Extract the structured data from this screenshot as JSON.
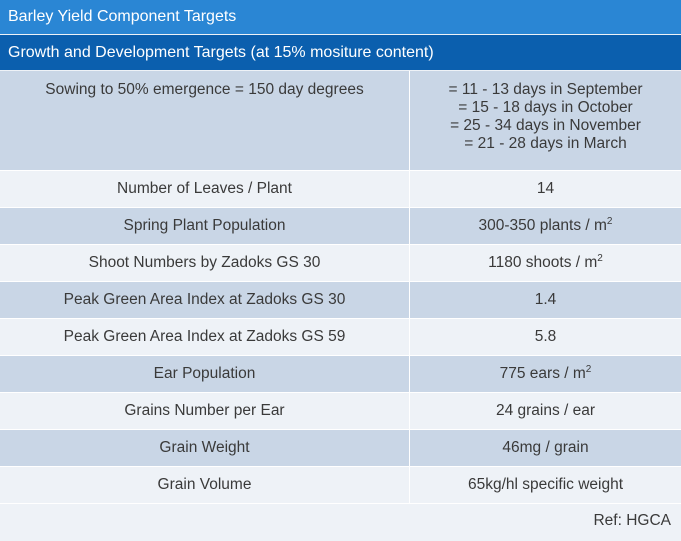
{
  "header": {
    "title": "Barley Yield Component Targets",
    "subtitle": "Growth and Development Targets (at 15% mositure content)"
  },
  "table": {
    "rows": [
      {
        "label": "Sowing to 50% emergence = 150 day degrees",
        "value_lines": [
          "= 11 - 13 days in September",
          "= 15 - 18 days in October",
          "= 25 - 34 days in November",
          "= 21 - 28 days in March"
        ]
      },
      {
        "label": "Number of Leaves / Plant",
        "value": "14"
      },
      {
        "label": "Spring Plant Population",
        "value": "300-350 plants / m",
        "sup": "2"
      },
      {
        "label": "Shoot Numbers by Zadoks GS 30",
        "value": "1180 shoots / m",
        "sup": "2"
      },
      {
        "label": "Peak Green Area Index at Zadoks GS 30",
        "value": "1.4"
      },
      {
        "label": "Peak Green Area Index at Zadoks GS 59",
        "value": "5.8"
      },
      {
        "label": "Ear Population",
        "value": "775 ears / m",
        "sup": "2"
      },
      {
        "label": "Grains Number per Ear",
        "value": "24 grains / ear"
      },
      {
        "label": "Grain Weight",
        "value": "46mg / grain"
      },
      {
        "label": "Grain Volume",
        "value": "65kg/hl specific weight"
      }
    ]
  },
  "ref": "Ref: HGCA"
}
